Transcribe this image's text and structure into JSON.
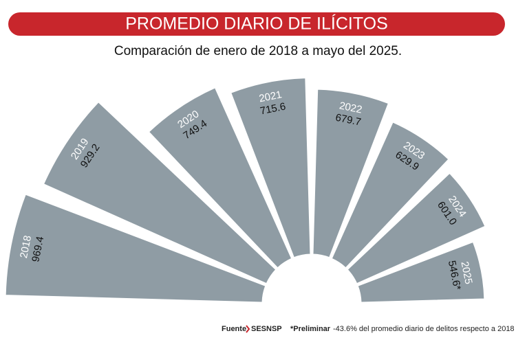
{
  "chart_data": {
    "type": "radial",
    "title": "PROMEDIO DIARIO DE ILÍCITOS",
    "subtitle": "Comparación de enero de 2018 a mayo del 2025.",
    "categories": [
      "2018",
      "2019",
      "2020",
      "2021",
      "2022",
      "2023",
      "2024",
      "2025"
    ],
    "values": [
      969.4,
      929.2,
      749.4,
      715.6,
      679.7,
      629.9,
      601.0,
      546.6
    ],
    "value_labels": [
      "969.4",
      "929.2",
      "749.4",
      "715.6",
      "679.7",
      "629.9",
      "601.0",
      "546.6*"
    ],
    "color": "#8f9ca4",
    "source_label": "Fuente",
    "source": "SESNSP",
    "note": "*Preliminar",
    "annotation": "-43.6% del promedio diario de delitos respecto a 2018"
  }
}
